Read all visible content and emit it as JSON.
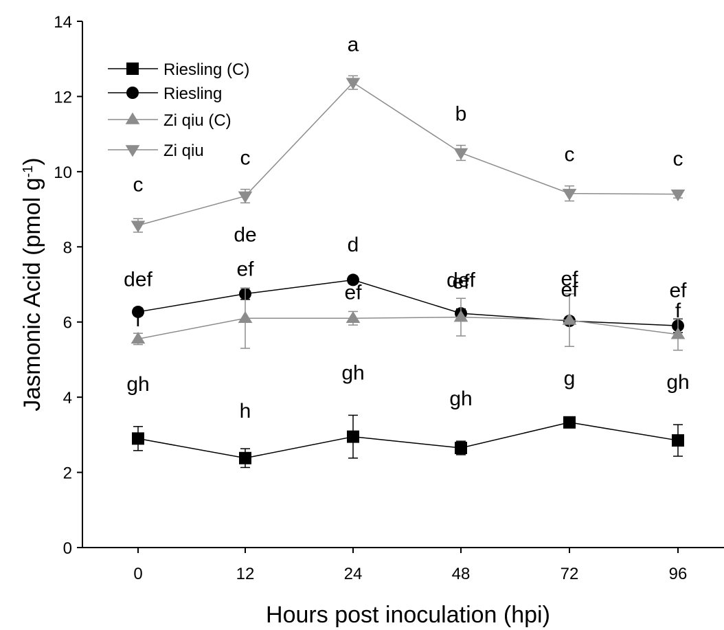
{
  "chart_data": {
    "type": "line",
    "xlabel": "Hours post inoculation (hpi)",
    "ylabel": "Jasmonic Acid (pmol g",
    "ylabel_sup": "-1",
    "ylabel_close": ")",
    "categories": [
      "0",
      "12",
      "24",
      "48",
      "72",
      "96"
    ],
    "ylim": [
      0,
      14
    ],
    "yticks": [
      "0",
      "2",
      "4",
      "6",
      "8",
      "10",
      "12",
      "14"
    ],
    "grid": false,
    "legend_position": "top-left",
    "series": [
      {
        "name": "Riesling (C)",
        "marker": "square",
        "color": "#000000",
        "values": [
          2.9,
          2.38,
          2.95,
          2.65,
          3.33,
          2.85
        ],
        "errors": [
          0.32,
          0.25,
          0.57,
          0.18,
          0.08,
          0.42
        ],
        "labels": [
          "gh",
          "h",
          "gh",
          "gh",
          "g",
          "gh"
        ]
      },
      {
        "name": "Riesling",
        "marker": "circle",
        "color": "#000000",
        "values": [
          6.27,
          6.75,
          7.12,
          6.23,
          6.03,
          5.9
        ],
        "errors": [
          0.1,
          0.15,
          0.1,
          0.12,
          0.1,
          0.18
        ],
        "labels": [
          "def",
          "de",
          "d",
          "def",
          "ef",
          "ef"
        ]
      },
      {
        "name": "Zi qiu (C)",
        "marker": "triangle-up",
        "color": "#8c8c8c",
        "values": [
          5.55,
          6.1,
          6.1,
          6.13,
          6.05,
          5.67
        ],
        "errors": [
          0.15,
          0.8,
          0.18,
          0.5,
          0.7,
          0.42
        ],
        "labels": [
          "f",
          "ef",
          "ef",
          "ef",
          "ef",
          "f"
        ]
      },
      {
        "name": "Zi qiu",
        "marker": "triangle-down",
        "color": "#8c8c8c",
        "values": [
          8.57,
          9.35,
          12.37,
          10.5,
          9.42,
          9.4
        ],
        "errors": [
          0.18,
          0.18,
          0.18,
          0.2,
          0.2,
          0.1
        ],
        "labels": [
          "c",
          "c",
          "a",
          "b",
          "c",
          "c"
        ]
      }
    ]
  }
}
